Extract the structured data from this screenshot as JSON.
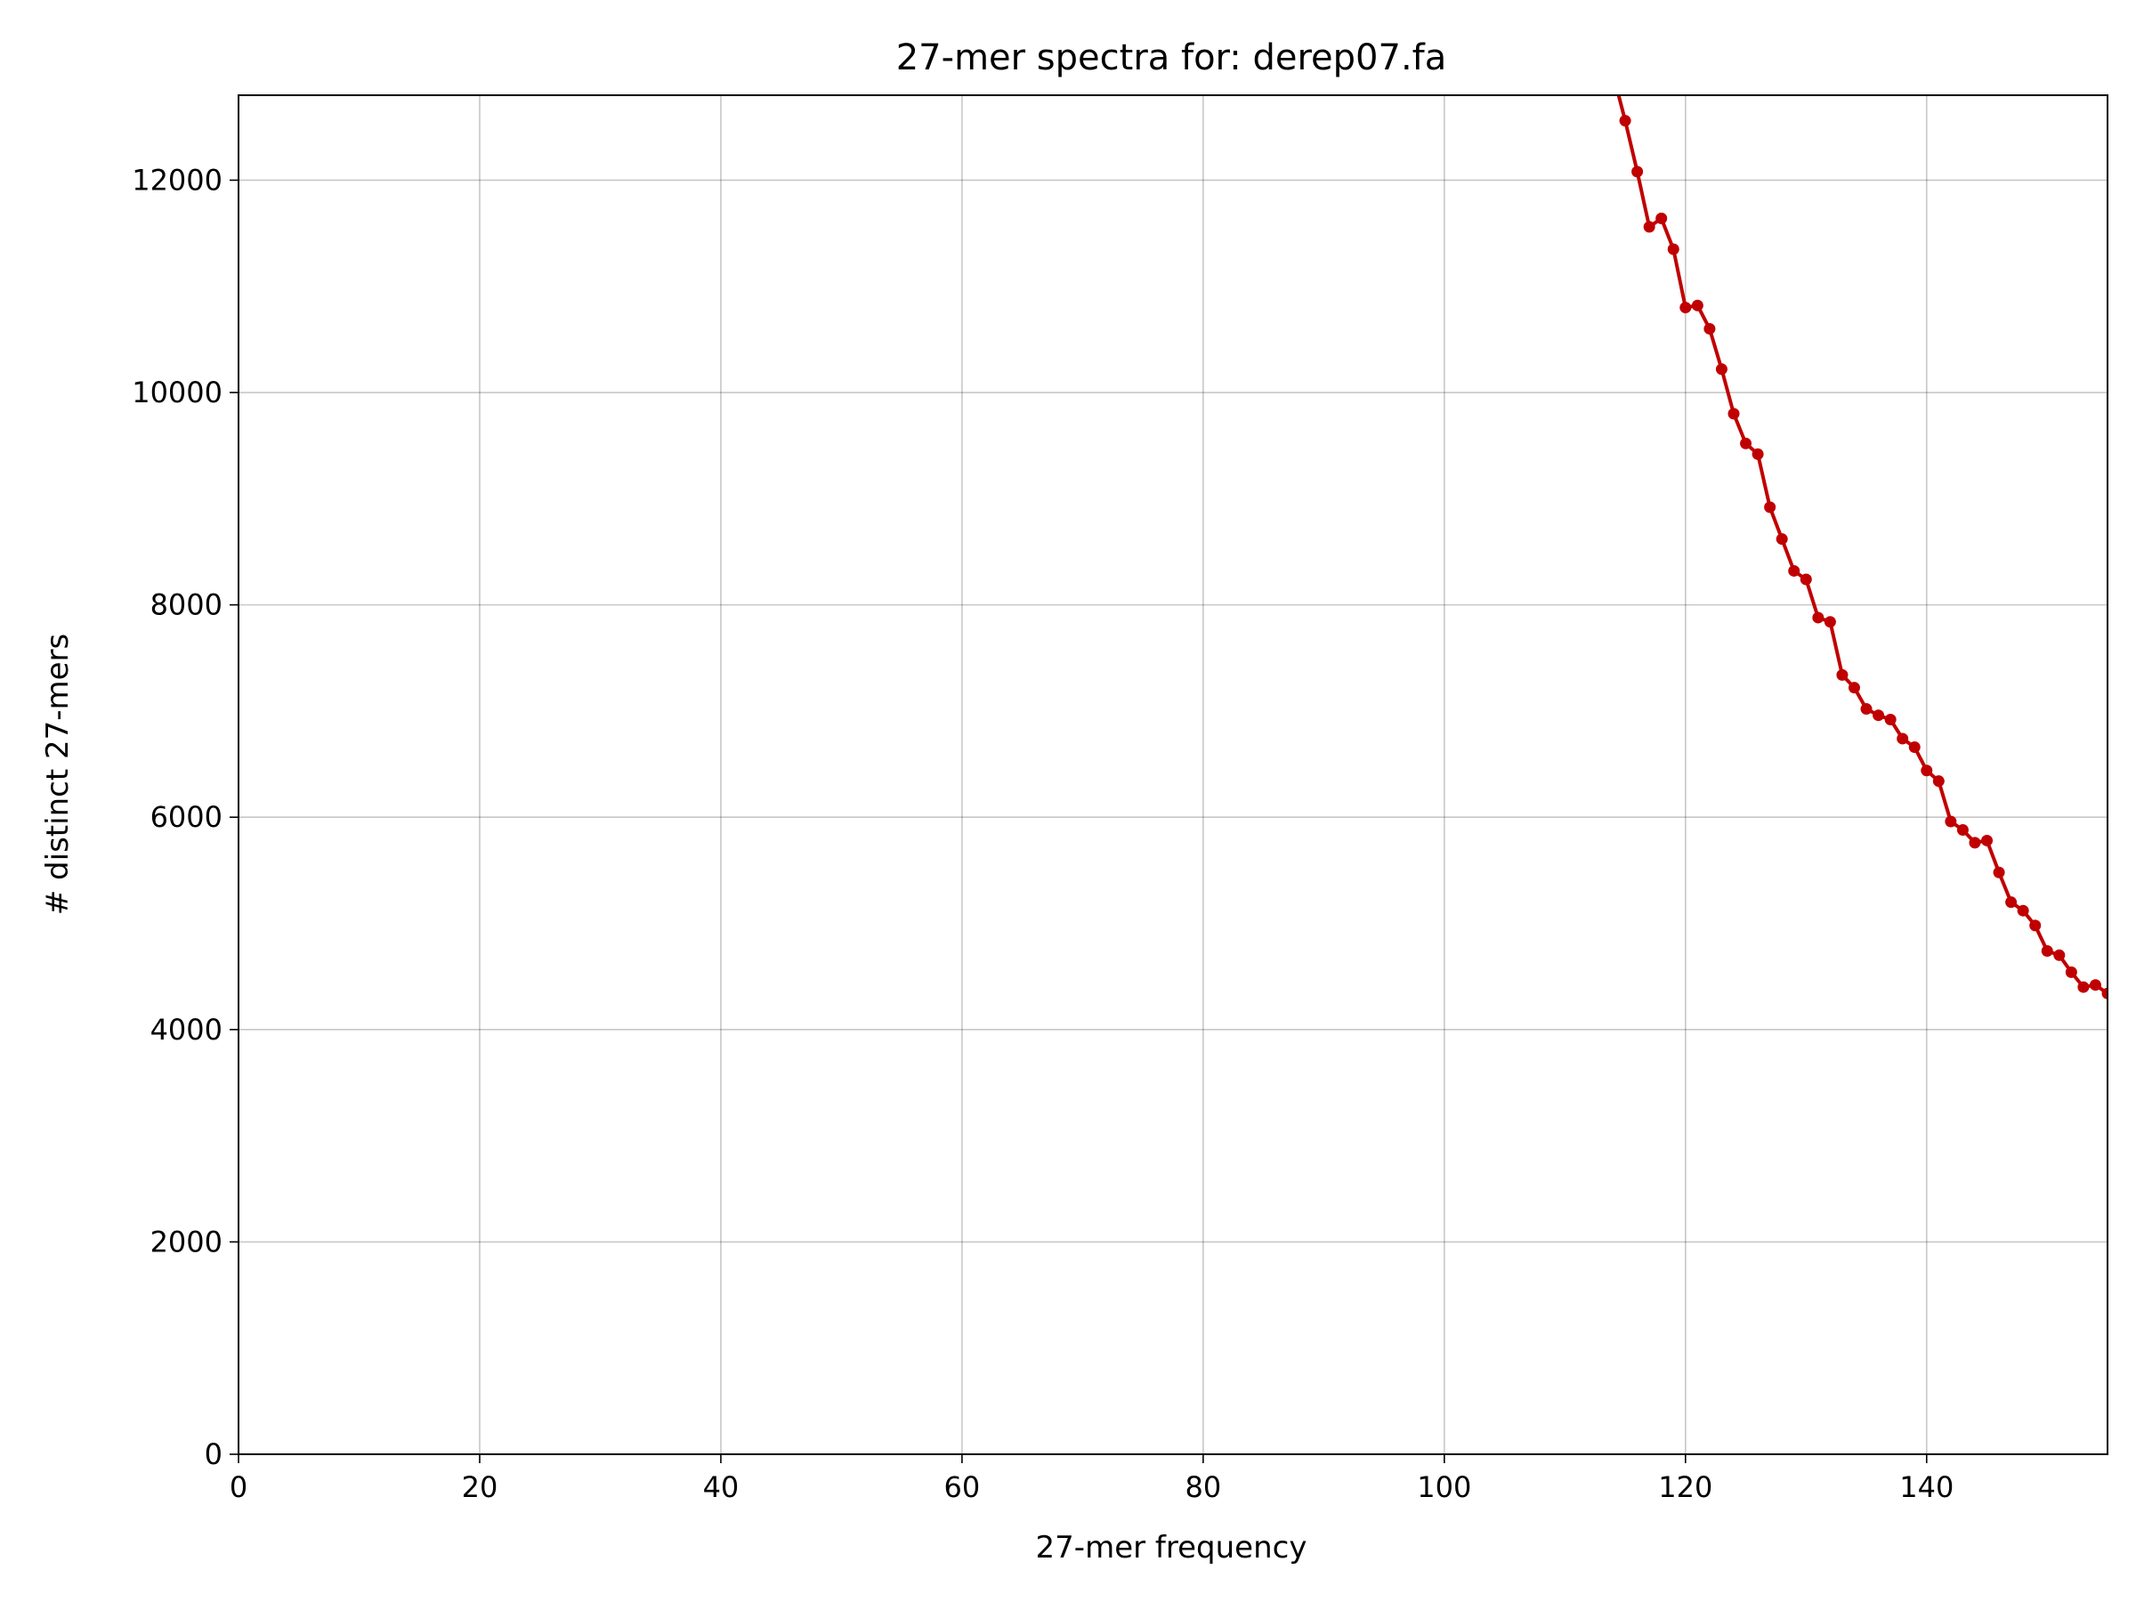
{
  "chart_data": {
    "type": "line",
    "title": "27-mer spectra for: derep07.fa",
    "xlabel": "27-mer frequency",
    "ylabel": "# distinct 27-mers",
    "xlim": [
      0,
      155
    ],
    "ylim": [
      0,
      12800
    ],
    "xticks": [
      0,
      20,
      40,
      60,
      80,
      100,
      120,
      140
    ],
    "yticks": [
      0,
      2000,
      4000,
      6000,
      8000,
      10000,
      12000
    ],
    "grid": true,
    "line_color": "#c00000",
    "series": [
      {
        "x": [
          114,
          115,
          116,
          117,
          118,
          119,
          120,
          121,
          122,
          123,
          124,
          125,
          126,
          127,
          128,
          129,
          130,
          131,
          132,
          133,
          134,
          135,
          136,
          137,
          138,
          139,
          140,
          141,
          142,
          143,
          144,
          145,
          146,
          147,
          148,
          149,
          150,
          151,
          152,
          153,
          154,
          155
        ],
        "y": [
          13000,
          12560,
          12080,
          11560,
          11640,
          11350,
          10800,
          10820,
          10600,
          10220,
          9800,
          9520,
          9420,
          8920,
          8620,
          8320,
          8240,
          7880,
          7840,
          7340,
          7220,
          7020,
          6960,
          6920,
          6740,
          6660,
          6440,
          6340,
          5960,
          5880,
          5760,
          5780,
          5480,
          5200,
          5120,
          4980,
          4740,
          4700,
          4540,
          4400,
          4420,
          4340
        ]
      }
    ]
  }
}
